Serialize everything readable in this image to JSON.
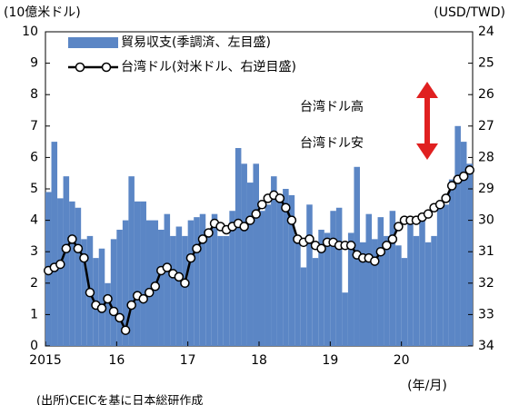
{
  "chart_data": {
    "type": "bar_line",
    "ylabel": "(10億米ドル)",
    "y2label": "(USD/TWD)",
    "xlabel": "(年/月)",
    "source": "(出所)CEICを基に日本総研作成",
    "annotations": [
      "台湾ドル高",
      "台湾ドル安"
    ],
    "categories": [
      "2015",
      null,
      null,
      null,
      null,
      null,
      null,
      null,
      null,
      null,
      null,
      null,
      "16",
      null,
      null,
      null,
      null,
      null,
      null,
      null,
      null,
      null,
      null,
      null,
      "17",
      null,
      null,
      null,
      null,
      null,
      null,
      null,
      null,
      null,
      null,
      null,
      "18",
      null,
      null,
      null,
      null,
      null,
      null,
      null,
      null,
      null,
      null,
      null,
      "19",
      null,
      null,
      null,
      null,
      null,
      null,
      null,
      null,
      null,
      null,
      null,
      "20",
      null,
      null,
      null,
      null,
      null,
      null,
      null,
      null,
      null,
      null,
      null
    ],
    "series": [
      {
        "name": "貿易収支(季調済、左目盛)",
        "type": "bar",
        "color": "#5b86c5",
        "values": [
          4.9,
          6.5,
          4.7,
          5.4,
          4.6,
          4.4,
          3.4,
          3.5,
          2.8,
          3.1,
          2.0,
          3.4,
          3.7,
          4.0,
          5.4,
          4.6,
          4.6,
          4.0,
          4.0,
          3.7,
          4.2,
          3.5,
          3.8,
          3.5,
          4.0,
          4.1,
          4.2,
          3.6,
          4.2,
          3.5,
          3.5,
          4.3,
          6.3,
          5.8,
          5.2,
          5.8,
          4.3,
          4.5,
          5.4,
          4.6,
          5.0,
          4.8,
          3.5,
          2.5,
          4.5,
          2.8,
          3.7,
          3.6,
          4.3,
          4.4,
          1.7,
          3.6,
          5.7,
          3.3,
          4.2,
          3.4,
          4.1,
          3.5,
          4.3,
          3.2,
          2.8,
          3.9,
          3.5,
          4.0,
          3.3,
          3.5,
          4.5,
          4.5,
          5.3,
          7.0,
          6.5,
          5.8
        ]
      },
      {
        "name": "台湾ドル(対米ドル、右逆目盛)",
        "type": "line",
        "axis": "y2",
        "color": "#000000",
        "values": [
          31.6,
          31.5,
          31.4,
          30.9,
          30.6,
          30.9,
          31.2,
          32.3,
          32.7,
          32.8,
          32.5,
          32.9,
          33.1,
          33.5,
          32.7,
          32.4,
          32.5,
          32.3,
          32.1,
          31.6,
          31.5,
          31.7,
          31.8,
          32.0,
          31.2,
          30.9,
          30.6,
          30.4,
          30.1,
          30.2,
          30.3,
          30.2,
          30.1,
          30.2,
          30.0,
          29.8,
          29.5,
          29.3,
          29.2,
          29.3,
          29.6,
          30.0,
          30.6,
          30.7,
          30.6,
          30.8,
          30.9,
          30.7,
          30.7,
          30.8,
          30.8,
          30.8,
          31.1,
          31.2,
          31.2,
          31.3,
          31.0,
          30.8,
          30.6,
          30.2,
          30.0,
          30.0,
          30.0,
          29.9,
          29.8,
          29.6,
          29.5,
          29.3,
          28.9,
          28.7,
          28.6,
          28.4
        ]
      }
    ],
    "ylim": [
      0,
      10
    ],
    "yticks": [
      0,
      1,
      2,
      3,
      4,
      5,
      6,
      7,
      8,
      9,
      10
    ],
    "y2lim": [
      34,
      24
    ],
    "y2ticks": [
      24,
      25,
      26,
      27,
      28,
      29,
      30,
      31,
      32,
      33,
      34
    ],
    "y2_inverted": true
  }
}
